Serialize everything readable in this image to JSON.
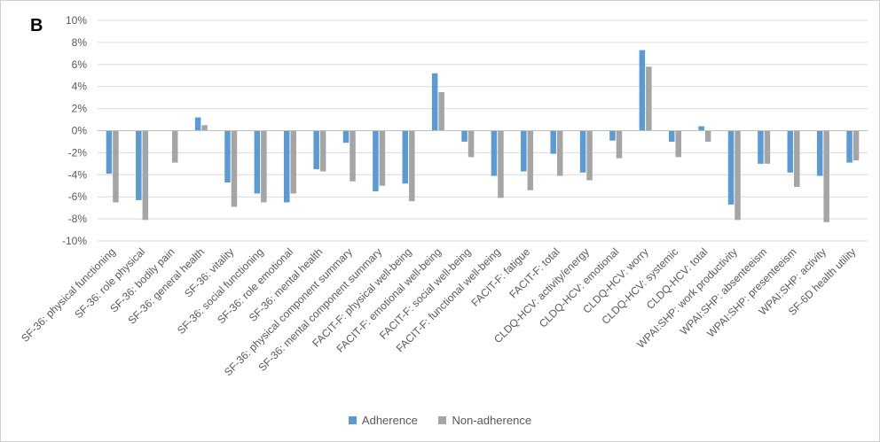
{
  "panel_label": "B",
  "chart_data": {
    "type": "bar",
    "categories": [
      "SF-36: physical functioning",
      "SF-36: role physical",
      "SF-36: bodily pain",
      "SF-36: general health",
      "SF-36: vitality",
      "SF-36: social functioning",
      "SF-36: role emotional",
      "SF-36: mental health",
      "SF-36: physical component summary",
      "SF-36: mental component summary",
      "FACIT-F: physical well-being",
      "FACIT-F: emotional well-being",
      "FACIT-F: social well-being",
      "FACIT-F: functional well-being",
      "FACIT-F: fatigue",
      "FACIT-F: total",
      "CLDQ-HCV: activity/energy",
      "CLDQ-HCV: emotional",
      "CLDQ-HCV: worry",
      "CLDQ-HCV: systemic",
      "CLDQ-HCV: total",
      "WPAI:SHP: work productivity",
      "WPAI:SHP: absenteeism",
      "WPAI:SHP: presenteeism",
      "WPAI:SHP: activity",
      "SF-6D health utility"
    ],
    "series": [
      {
        "name": "Adherence",
        "color": "#5b9bd5",
        "values": [
          -3.9,
          -6.3,
          0,
          1.2,
          -4.7,
          -5.7,
          -6.5,
          -3.5,
          -1.1,
          -5.5,
          -4.8,
          5.2,
          -1.0,
          -4.1,
          -3.7,
          -2.1,
          -3.8,
          -0.9,
          7.3,
          -1.0,
          0.4,
          -6.7,
          -3.0,
          -3.8,
          -4.1,
          -2.9
        ]
      },
      {
        "name": "Non-adherence",
        "color": "#a5a5a5",
        "values": [
          -6.5,
          -8.1,
          -2.9,
          0.5,
          -6.9,
          -6.5,
          -5.7,
          -3.7,
          -4.6,
          -5.0,
          -6.4,
          3.5,
          -2.4,
          -6.1,
          -5.4,
          -4.1,
          -4.5,
          -2.5,
          5.8,
          -2.4,
          -1.0,
          -8.1,
          -3.0,
          -5.1,
          -8.3,
          -2.7
        ]
      }
    ],
    "y_ticks": [
      "10%",
      "8%",
      "6%",
      "4%",
      "2%",
      "0%",
      "-2%",
      "-4%",
      "-6%",
      "-8%",
      "-10%"
    ],
    "ylim": [
      -10,
      10
    ],
    "ylabel": "",
    "xlabel": "",
    "grid": true,
    "legend_position": "bottom"
  }
}
